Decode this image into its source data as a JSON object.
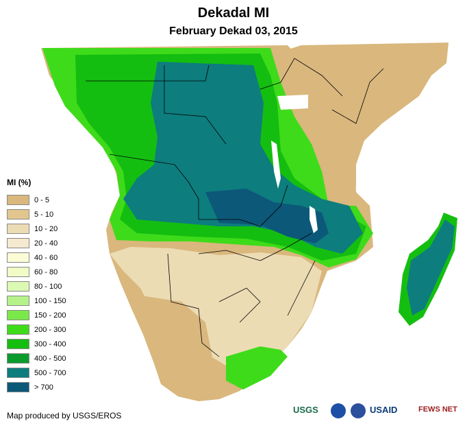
{
  "title": "Dekadal MI",
  "subtitle": "February Dekad 03, 2015",
  "legend": {
    "title": "MI (%)",
    "items": [
      {
        "label": "0 - 5",
        "color": "#d9b77d"
      },
      {
        "label": "5 - 10",
        "color": "#e3c68f"
      },
      {
        "label": "10 - 20",
        "color": "#ecdcb4"
      },
      {
        "label": "20 - 40",
        "color": "#f5ead0"
      },
      {
        "label": "40 - 60",
        "color": "#fbfbd6"
      },
      {
        "label": "60 - 80",
        "color": "#f0fbc6"
      },
      {
        "label": "80 - 100",
        "color": "#dcf9b4"
      },
      {
        "label": "100 - 150",
        "color": "#b5f28a"
      },
      {
        "label": "150 - 200",
        "color": "#7be84a"
      },
      {
        "label": "200 - 300",
        "color": "#3edb1a"
      },
      {
        "label": "300 - 400",
        "color": "#14be10"
      },
      {
        "label": "400 - 500",
        "color": "#0b9a2c"
      },
      {
        "label": "500 - 700",
        "color": "#0d7d7e"
      },
      {
        "label": "> 700",
        "color": "#0c5878"
      }
    ]
  },
  "credit": "Map produced by USGS/EROS",
  "logos": {
    "usgs": "USGS",
    "usaid": "USAID",
    "fewsnet": "FEWS NET"
  }
}
